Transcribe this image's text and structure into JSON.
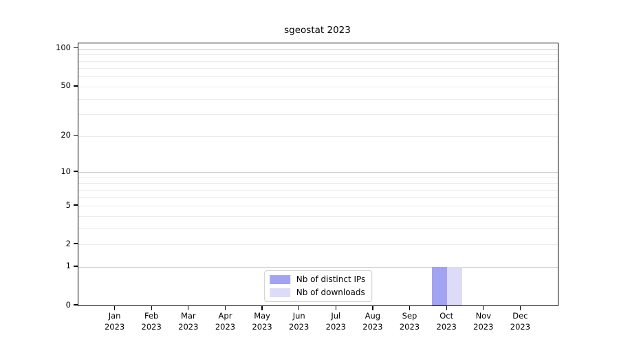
{
  "chart_data": {
    "type": "bar",
    "title": "sgeostat 2023",
    "categories": [
      "Jan",
      "Feb",
      "Mar",
      "Apr",
      "May",
      "Jun",
      "Jul",
      "Aug",
      "Sep",
      "Oct",
      "Nov",
      "Dec"
    ],
    "x_year_label": "2023",
    "series": [
      {
        "name": "Nb of distinct IPs",
        "color": "#a3a3f3",
        "values": [
          0,
          0,
          0,
          0,
          0,
          0,
          0,
          0,
          0,
          1,
          0,
          0
        ]
      },
      {
        "name": "Nb of downloads",
        "color": "#dcdcf8",
        "values": [
          0,
          0,
          0,
          0,
          0,
          0,
          0,
          0,
          0,
          1,
          0,
          0
        ]
      }
    ],
    "yaxis": {
      "scale": "log1p",
      "ylim": [
        0,
        100
      ],
      "top_value": 110,
      "tick_values": [
        0,
        1,
        2,
        5,
        10,
        20,
        50,
        100
      ],
      "major_gridlines": [
        1,
        10,
        100
      ],
      "minor_gridlines": [
        2,
        3,
        4,
        5,
        6,
        7,
        8,
        9,
        20,
        30,
        40,
        50,
        60,
        70,
        80,
        90
      ]
    },
    "legend": {
      "position": "lower center"
    },
    "colors": {
      "axis": "#000000",
      "major_grid": "#cccccc",
      "minor_grid": "#ebebeb",
      "legend_border": "#cccccc",
      "background": "#ffffff"
    }
  }
}
